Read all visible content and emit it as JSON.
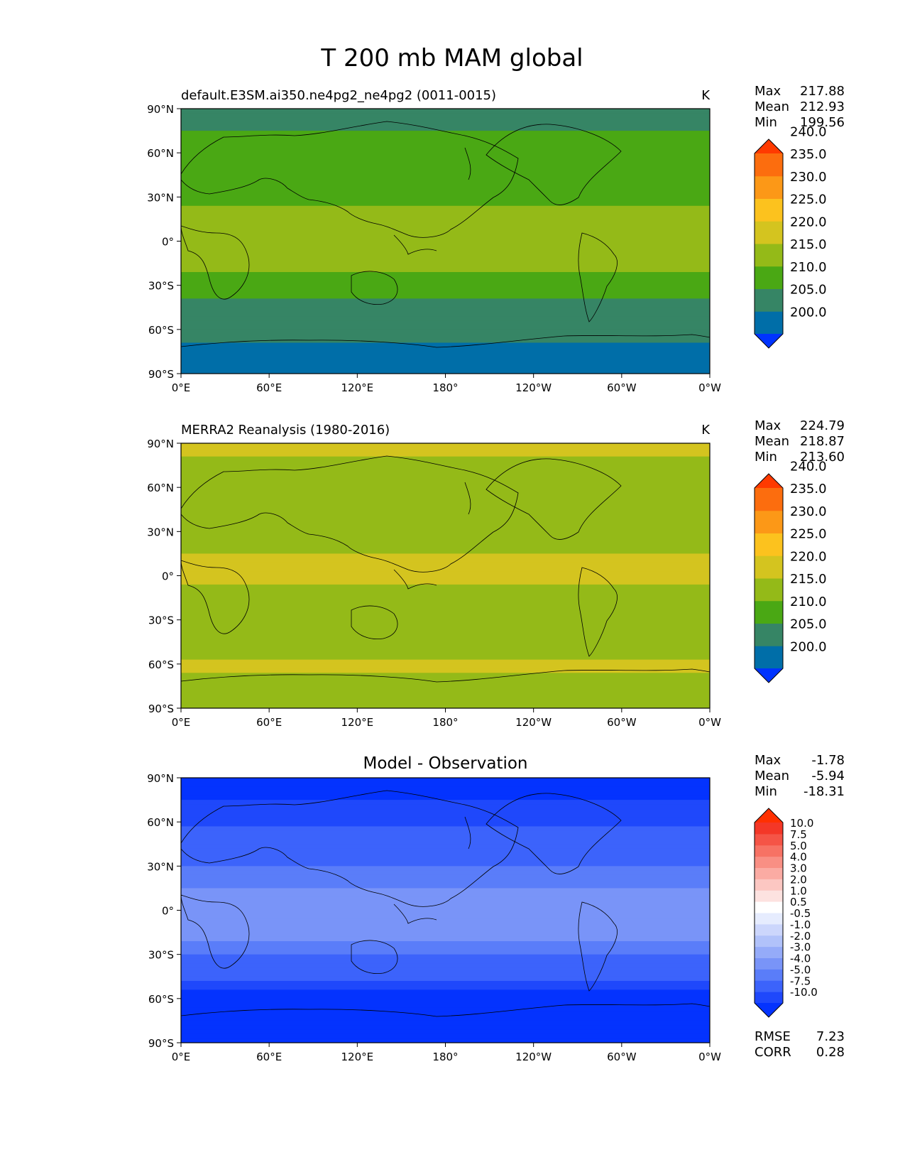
{
  "figure": {
    "title": "T 200 mb MAM global"
  },
  "map_axes": {
    "lat_ticks": [
      "90°N",
      "60°N",
      "30°N",
      "0°",
      "30°S",
      "60°S",
      "90°S"
    ],
    "lon_ticks": [
      "0°E",
      "60°E",
      "120°E",
      "180°",
      "120°W",
      "60°W",
      "0°W"
    ]
  },
  "panels": [
    {
      "left_title": "default.E3SM.ai350.ne4pg2_ne4pg2 (0011-0015)",
      "center_title": "",
      "right_title": "K",
      "stats": [
        {
          "label": "Max",
          "value": "217.88"
        },
        {
          "label": "Mean",
          "value": "212.93"
        },
        {
          "label": "Min",
          "value": "199.56"
        }
      ],
      "colorbar": {
        "colors": [
          "#0033ff",
          "#006ea8",
          "#368565",
          "#4aa814",
          "#94ba18",
          "#d4c41f",
          "#fcc21e",
          "#fc9817",
          "#fc6d0e",
          "#ff3a00"
        ],
        "labels": [
          "200.0",
          "205.0",
          "210.0",
          "215.0",
          "220.0",
          "225.0",
          "230.0",
          "235.0",
          "240.0"
        ]
      },
      "extra_stats": []
    },
    {
      "left_title": "MERRA2 Reanalysis (1980-2016)",
      "center_title": "",
      "right_title": "K",
      "stats": [
        {
          "label": "Max",
          "value": "224.79"
        },
        {
          "label": "Mean",
          "value": "218.87"
        },
        {
          "label": "Min",
          "value": "213.60"
        }
      ],
      "colorbar": {
        "colors": [
          "#0033ff",
          "#006ea8",
          "#368565",
          "#4aa814",
          "#94ba18",
          "#d4c41f",
          "#fcc21e",
          "#fc9817",
          "#fc6d0e",
          "#ff3a00"
        ],
        "labels": [
          "200.0",
          "205.0",
          "210.0",
          "215.0",
          "220.0",
          "225.0",
          "230.0",
          "235.0",
          "240.0"
        ]
      },
      "extra_stats": []
    },
    {
      "left_title": "",
      "center_title": "Model - Observation",
      "right_title": "",
      "stats": [
        {
          "label": "Max",
          "value": "-1.78"
        },
        {
          "label": "Mean",
          "value": "-5.94"
        },
        {
          "label": "Min",
          "value": "-18.31"
        }
      ],
      "colorbar": {
        "colors": [
          "#0433fe",
          "#1f48fb",
          "#3c63fb",
          "#5a7df9",
          "#7994f8",
          "#95abf9",
          "#b1c2fa",
          "#ccd6fc",
          "#e6ecfe",
          "#ffffff",
          "#fde2e0",
          "#fcc7c2",
          "#fbaba3",
          "#f98f84",
          "#f77264",
          "#f55446",
          "#f43727",
          "#ff3000"
        ],
        "labels": [
          "-10.0",
          "-7.5",
          "-5.0",
          "-4.0",
          "-3.0",
          "-2.0",
          "-1.0",
          "-0.5",
          "0.5",
          "1.0",
          "2.0",
          "3.0",
          "4.0",
          "5.0",
          "7.5",
          "10.0"
        ]
      },
      "extra_stats": [
        {
          "label": "RMSE",
          "value": "7.23"
        },
        {
          "label": "CORR",
          "value": "0.28"
        }
      ]
    }
  ],
  "chart_data": [
    {
      "type": "heatmap",
      "title": "default.E3SM.ai350.ne4pg2_ne4pg2 (0011-0015)",
      "units": "K",
      "x_range": [
        0,
        360
      ],
      "y_range": [
        -90,
        90
      ],
      "contour_levels": [
        200,
        205,
        210,
        215,
        220,
        225,
        230,
        235,
        240
      ],
      "max": 217.88,
      "mean": 212.93,
      "min": 199.56,
      "zonal_profile": {
        "lat": [
          90,
          75,
          60,
          45,
          30,
          15,
          0,
          -15,
          -30,
          -45,
          -60,
          -75,
          -90
        ],
        "value": [
          208,
          210,
          211,
          212.5,
          214,
          216.5,
          217,
          216.5,
          213,
          208,
          206,
          204,
          202
        ]
      }
    },
    {
      "type": "heatmap",
      "title": "MERRA2 Reanalysis (1980-2016)",
      "units": "K",
      "x_range": [
        0,
        360
      ],
      "y_range": [
        -90,
        90
      ],
      "contour_levels": [
        200,
        205,
        210,
        215,
        220,
        225,
        230,
        235,
        240
      ],
      "max": 224.79,
      "mean": 218.87,
      "min": 213.6,
      "zonal_profile": {
        "lat": [
          90,
          75,
          60,
          45,
          30,
          15,
          0,
          -15,
          -30,
          -45,
          -60,
          -75,
          -90
        ],
        "value": [
          220.5,
          219.5,
          219,
          217.5,
          217.5,
          220,
          220.5,
          219,
          218.5,
          218,
          220.5,
          219,
          218
        ]
      }
    },
    {
      "type": "heatmap",
      "title": "Model - Observation",
      "units": "K",
      "x_range": [
        0,
        360
      ],
      "y_range": [
        -90,
        90
      ],
      "contour_levels": [
        -10,
        -7.5,
        -5,
        -4,
        -3,
        -2,
        -1,
        -0.5,
        0.5,
        1,
        2,
        3,
        4,
        5,
        7.5,
        10
      ],
      "max": -1.78,
      "mean": -5.94,
      "min": -18.31,
      "rmse": 7.23,
      "corr": 0.28,
      "zonal_profile": {
        "lat": [
          90,
          75,
          60,
          45,
          30,
          15,
          0,
          -15,
          -30,
          -45,
          -60,
          -75,
          -90
        ],
        "value": [
          -12,
          -10,
          -8,
          -6,
          -5,
          -4,
          -3,
          -3.5,
          -5,
          -7,
          -12,
          -14,
          -15
        ]
      }
    }
  ]
}
